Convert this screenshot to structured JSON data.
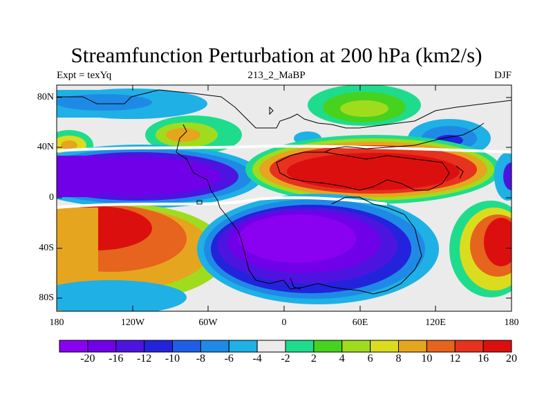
{
  "title": "Streamfunction Perturbation at 200 hPa (km2/s)",
  "subtitle_left": "Expt = texYq",
  "subtitle_center": "213_2_MaBP",
  "subtitle_right": "DJF",
  "lat_labels": [
    "80N",
    "40N",
    "0",
    "40S",
    "80S"
  ],
  "lon_labels": [
    "180",
    "120W",
    "60W",
    "0",
    "60E",
    "120E",
    "180"
  ],
  "colorbar": {
    "colors": [
      "#8a00f0",
      "#7000e8",
      "#4d14e0",
      "#2323dc",
      "#1f5fe6",
      "#1f8ae6",
      "#1fb0e6",
      "#ebebeb",
      "#1fdc8c",
      "#46d21e",
      "#a0dc1e",
      "#dcdc1e",
      "#e6a51e",
      "#e6641e",
      "#e6321e",
      "#dc0f0f"
    ],
    "labels": [
      "-20",
      "-16",
      "-12",
      "-10",
      "-8",
      "-6",
      "-4",
      "-2",
      "2",
      "4",
      "6",
      "8",
      "10",
      "12",
      "16",
      "20"
    ]
  }
}
